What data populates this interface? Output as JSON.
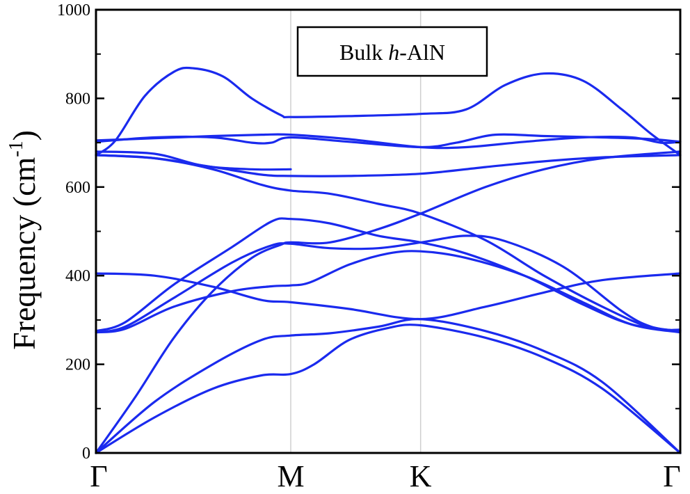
{
  "chart_data": {
    "type": "line",
    "title": "",
    "legend_box": {
      "prefix": "Bulk ",
      "italic": "h",
      "suffix": "-AlN"
    },
    "ylabel": {
      "main": "Frequency (cm",
      "sup": "-1",
      "close": ")"
    },
    "xlabel": "",
    "ylim": [
      0,
      1000
    ],
    "yticks": [
      0,
      200,
      400,
      600,
      800,
      1000
    ],
    "ytick_labels": [
      "0",
      "200",
      "400",
      "600",
      "800",
      "1000"
    ],
    "x_range": [
      0,
      3
    ],
    "high_symmetry_points": [
      {
        "label": "Γ",
        "x": 0
      },
      {
        "label": "M",
        "x": 1
      },
      {
        "label": "K",
        "x": 1.6667
      },
      {
        "label": "Γ",
        "x": 3
      }
    ],
    "grid": "vertical lines at high-symmetry points",
    "line_color": "#1a2aee",
    "series": [
      {
        "points": [
          [
            0,
            0
          ],
          [
            0.3,
            80
          ],
          [
            0.6,
            145
          ],
          [
            0.85,
            175
          ],
          [
            1,
            178
          ],
          [
            1.12,
            200
          ],
          [
            1.3,
            255
          ],
          [
            1.5,
            282
          ],
          [
            1.6667,
            288
          ],
          [
            2.0,
            260
          ],
          [
            2.3,
            215
          ],
          [
            2.6,
            145
          ],
          [
            3,
            0
          ]
        ]
      },
      {
        "points": [
          [
            0,
            0
          ],
          [
            0.3,
            115
          ],
          [
            0.6,
            200
          ],
          [
            0.85,
            255
          ],
          [
            1,
            265
          ],
          [
            1.2,
            270
          ],
          [
            1.45,
            285
          ],
          [
            1.6667,
            302
          ],
          [
            2.0,
            275
          ],
          [
            2.3,
            230
          ],
          [
            2.6,
            160
          ],
          [
            3,
            0
          ]
        ]
      },
      {
        "points": [
          [
            0,
            0
          ],
          [
            0.2,
            125
          ],
          [
            0.4,
            260
          ],
          [
            0.6,
            365
          ],
          [
            0.8,
            440
          ],
          [
            0.95,
            470
          ],
          [
            1,
            475
          ],
          [
            1.2,
            475
          ],
          [
            1.45,
            505
          ],
          [
            1.6667,
            540
          ],
          [
            2.0,
            600
          ],
          [
            2.3,
            640
          ],
          [
            2.6,
            665
          ],
          [
            3,
            680
          ]
        ]
      },
      {
        "points": [
          [
            0,
            405
          ],
          [
            0.3,
            400
          ],
          [
            0.6,
            375
          ],
          [
            0.85,
            345
          ],
          [
            1,
            340
          ],
          [
            1.3,
            325
          ],
          [
            1.6667,
            302
          ],
          [
            2.0,
            330
          ],
          [
            2.3,
            362
          ],
          [
            2.6,
            390
          ],
          [
            3,
            405
          ]
        ]
      },
      {
        "points": [
          [
            0,
            272
          ],
          [
            0.15,
            280
          ],
          [
            0.4,
            330
          ],
          [
            0.7,
            365
          ],
          [
            0.9,
            376
          ],
          [
            1,
            378
          ],
          [
            1.1,
            385
          ],
          [
            1.3,
            425
          ],
          [
            1.5,
            450
          ],
          [
            1.6667,
            455
          ],
          [
            1.9,
            440
          ],
          [
            2.2,
            400
          ],
          [
            2.5,
            340
          ],
          [
            2.75,
            290
          ],
          [
            3,
            272
          ]
        ]
      },
      {
        "points": [
          [
            0,
            272
          ],
          [
            0.15,
            285
          ],
          [
            0.4,
            350
          ],
          [
            0.7,
            430
          ],
          [
            0.9,
            468
          ],
          [
            1,
            472
          ],
          [
            1.2,
            462
          ],
          [
            1.45,
            462
          ],
          [
            1.6667,
            475
          ],
          [
            1.9,
            490
          ],
          [
            2.1,
            478
          ],
          [
            2.4,
            420
          ],
          [
            2.7,
            320
          ],
          [
            2.85,
            285
          ],
          [
            3,
            275
          ]
        ]
      },
      {
        "points": [
          [
            0,
            275
          ],
          [
            0.15,
            295
          ],
          [
            0.4,
            380
          ],
          [
            0.7,
            465
          ],
          [
            0.9,
            522
          ],
          [
            1,
            528
          ],
          [
            1.2,
            518
          ],
          [
            1.45,
            490
          ],
          [
            1.6667,
            475
          ],
          [
            1.9,
            450
          ],
          [
            2.2,
            400
          ],
          [
            2.5,
            335
          ],
          [
            2.75,
            290
          ],
          [
            3,
            275
          ]
        ]
      },
      {
        "points": [
          [
            0,
            672
          ],
          [
            0.3,
            665
          ],
          [
            0.6,
            640
          ],
          [
            0.85,
            605
          ],
          [
            1,
            592
          ],
          [
            1.2,
            585
          ],
          [
            1.45,
            562
          ],
          [
            1.6667,
            540
          ],
          [
            2.0,
            480
          ],
          [
            2.3,
            400
          ],
          [
            2.6,
            330
          ],
          [
            2.85,
            282
          ],
          [
            3,
            278
          ]
        ]
      },
      {
        "points": [
          [
            0,
            672
          ],
          [
            0.3,
            665
          ],
          [
            0.6,
            645
          ],
          [
            0.85,
            628
          ],
          [
            1,
            625
          ],
          [
            1.3,
            625
          ],
          [
            1.6667,
            630
          ],
          [
            2.0,
            645
          ],
          [
            2.3,
            658
          ],
          [
            2.6,
            667
          ],
          [
            3,
            672
          ]
        ]
      },
      {
        "points": [
          [
            0,
            680
          ],
          [
            0.3,
            675
          ],
          [
            0.55,
            648
          ],
          [
            0.8,
            640
          ],
          [
            1,
            640
          ]
        ]
      },
      {
        "points": [
          [
            0,
            702
          ],
          [
            0.3,
            712
          ],
          [
            0.6,
            712
          ],
          [
            0.8,
            700
          ],
          [
            0.9,
            700
          ],
          [
            1,
            712
          ],
          [
            1.3,
            702
          ],
          [
            1.6667,
            690
          ],
          [
            1.85,
            700
          ],
          [
            2.05,
            718
          ],
          [
            2.3,
            715
          ],
          [
            2.6,
            712
          ],
          [
            2.85,
            708
          ],
          [
            3,
            702
          ]
        ]
      },
      {
        "points": [
          [
            0,
            705
          ],
          [
            0.3,
            710
          ],
          [
            0.6,
            715
          ],
          [
            0.85,
            718
          ],
          [
            1,
            718
          ],
          [
            1.3,
            708
          ],
          [
            1.6667,
            690
          ],
          [
            1.9,
            690
          ],
          [
            2.2,
            702
          ],
          [
            2.5,
            712
          ],
          [
            2.75,
            712
          ],
          [
            2.9,
            700
          ],
          [
            3,
            702
          ]
        ]
      },
      {
        "points": [
          [
            0,
            672
          ],
          [
            0.1,
            705
          ],
          [
            0.25,
            805
          ],
          [
            0.4,
            860
          ],
          [
            0.5,
            868
          ],
          [
            0.65,
            850
          ],
          [
            0.8,
            800
          ],
          [
            0.95,
            762
          ],
          [
            1,
            758
          ],
          [
            1.3,
            760
          ],
          [
            1.6667,
            765
          ],
          [
            1.9,
            775
          ],
          [
            2.1,
            830
          ],
          [
            2.3,
            856
          ],
          [
            2.5,
            840
          ],
          [
            2.7,
            775
          ],
          [
            2.85,
            720
          ],
          [
            3,
            672
          ]
        ]
      }
    ]
  }
}
